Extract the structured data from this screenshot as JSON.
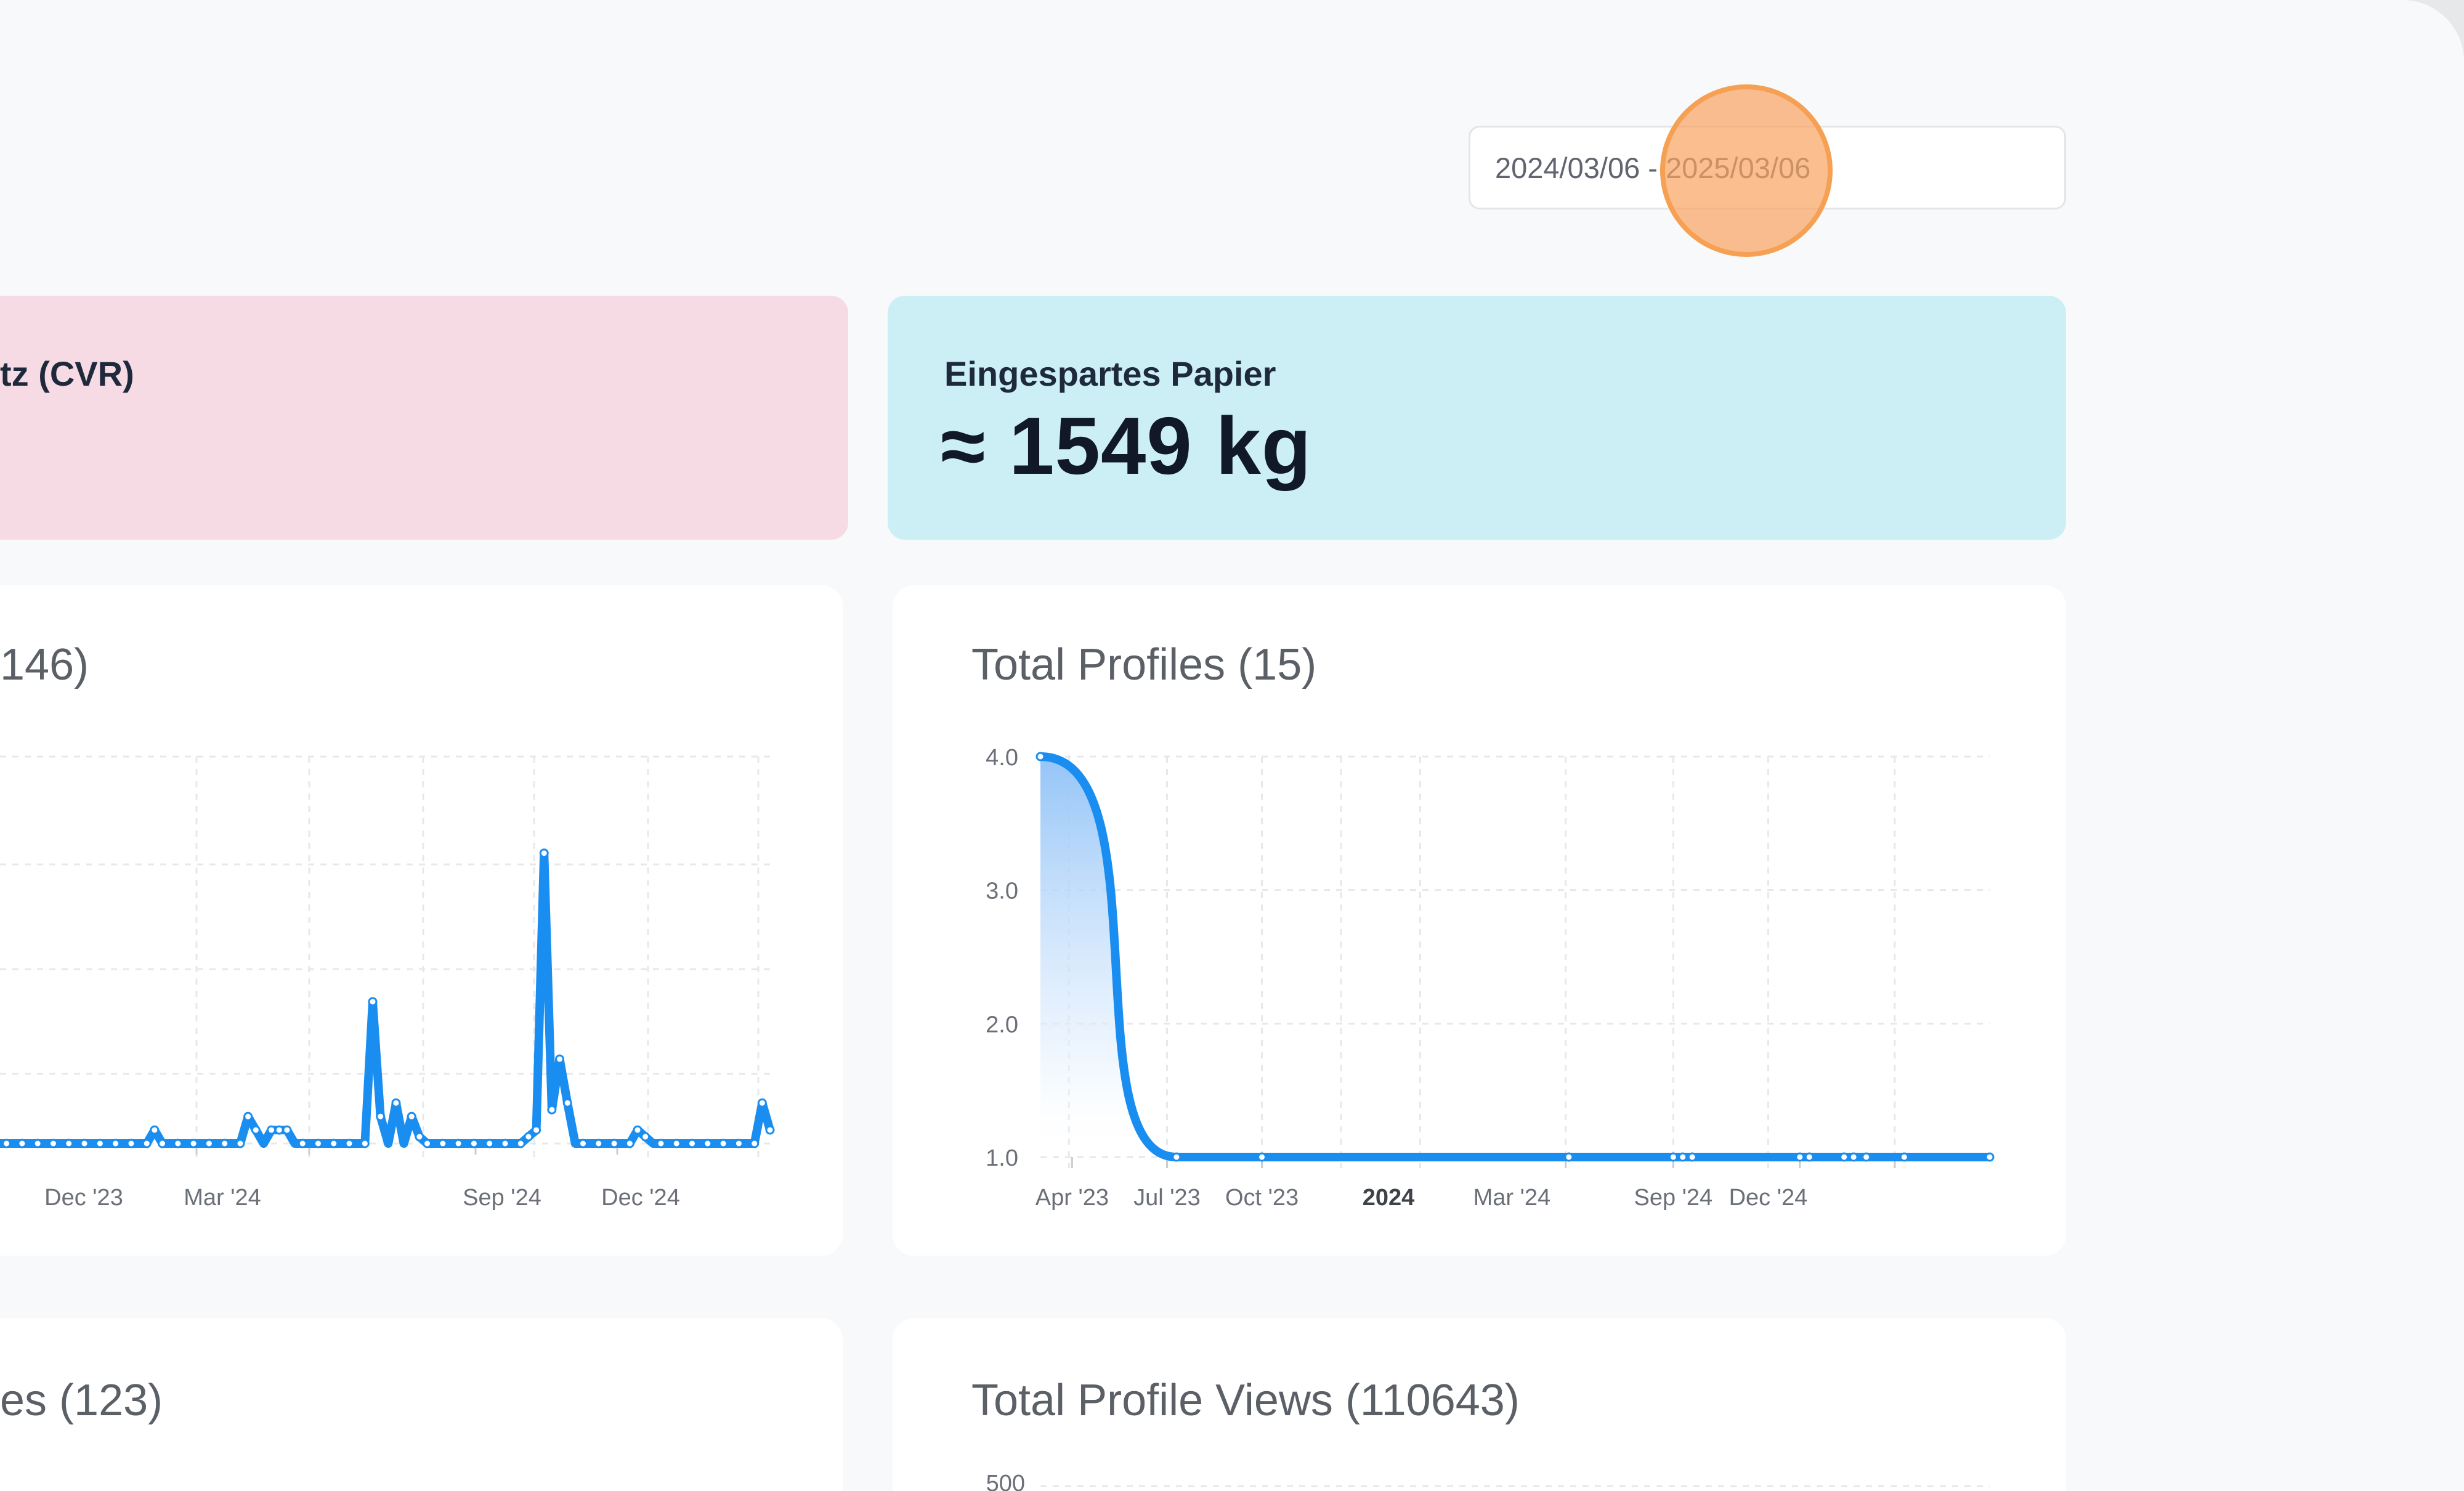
{
  "date_range": {
    "value": "2024/03/06 - 2025/03/06"
  },
  "stats": {
    "cvr": {
      "label": "tz (CVR)"
    },
    "paper": {
      "label": "Eingespartes Papier",
      "value": "≈ 1549 kg"
    }
  },
  "colors": {
    "accent": "#1a8ef0",
    "cvr_card": "#f6dae4",
    "paper_card": "#cbeff5",
    "cursor": "#f5a053"
  },
  "charts": {
    "left_top": {
      "title": ": (146)"
    },
    "profiles": {
      "title": "Total Profiles (15)"
    },
    "left_bottom": {
      "title": "es (123)"
    },
    "views": {
      "title": "Total Profile Views (110643)"
    }
  },
  "chart_data": [
    {
      "type": "line",
      "title": ": (146)",
      "x_tick_labels": [
        "Dec '23",
        "Mar '24",
        "Sep '24",
        "Dec '24"
      ],
      "note": "daily values, y axis cropped (no tick labels visible)",
      "ylim": [
        0,
        1
      ],
      "values": [
        0,
        0,
        0,
        0,
        0,
        0,
        0,
        0,
        0,
        0,
        0,
        0,
        0,
        0,
        0,
        0,
        0,
        0,
        0,
        0,
        0,
        0,
        0,
        0.04,
        0,
        0,
        0,
        0,
        0,
        0,
        0,
        0,
        0,
        0,
        0,
        0.08,
        0.04,
        0,
        0.04,
        0.04,
        0.04,
        0,
        0,
        0,
        0,
        0,
        0,
        0,
        0,
        0,
        0,
        0.42,
        0.08,
        0,
        0.12,
        0,
        0.08,
        0.02,
        0,
        0,
        0,
        0,
        0,
        0,
        0,
        0,
        0,
        0,
        0,
        0,
        0,
        0.02,
        0.04,
        0.86,
        0.1,
        0.25,
        0.12,
        0,
        0,
        0,
        0,
        0,
        0,
        0,
        0,
        0.04,
        0.02,
        0,
        0,
        0,
        0,
        0,
        0,
        0,
        0,
        0,
        0,
        0,
        0,
        0,
        0,
        0.12,
        0.04
      ]
    },
    {
      "type": "area",
      "title": "Total Profiles (15)",
      "x_tick_labels": [
        "Apr '23",
        "Jul '23",
        "Oct '23",
        "2024",
        "Mar '24",
        "Sep '24",
        "Dec '24"
      ],
      "y_tick_labels": [
        "4.0",
        "3.0",
        "2.0",
        "1.0"
      ],
      "ylim": [
        1,
        4
      ],
      "x_months": [
        0,
        4.3,
        7,
        16.7,
        20,
        20.3,
        20.6,
        24,
        24.3,
        25.4,
        25.7,
        26.1,
        27.3,
        30
      ],
      "values": [
        4,
        1,
        1,
        1,
        1,
        1,
        1,
        1,
        1,
        1,
        1,
        1,
        1,
        1
      ]
    },
    {
      "type": "line",
      "title": "Total Profile Views (110643)",
      "y_tick_labels": [
        "500"
      ],
      "note": "chart body cropped below visible area"
    }
  ]
}
